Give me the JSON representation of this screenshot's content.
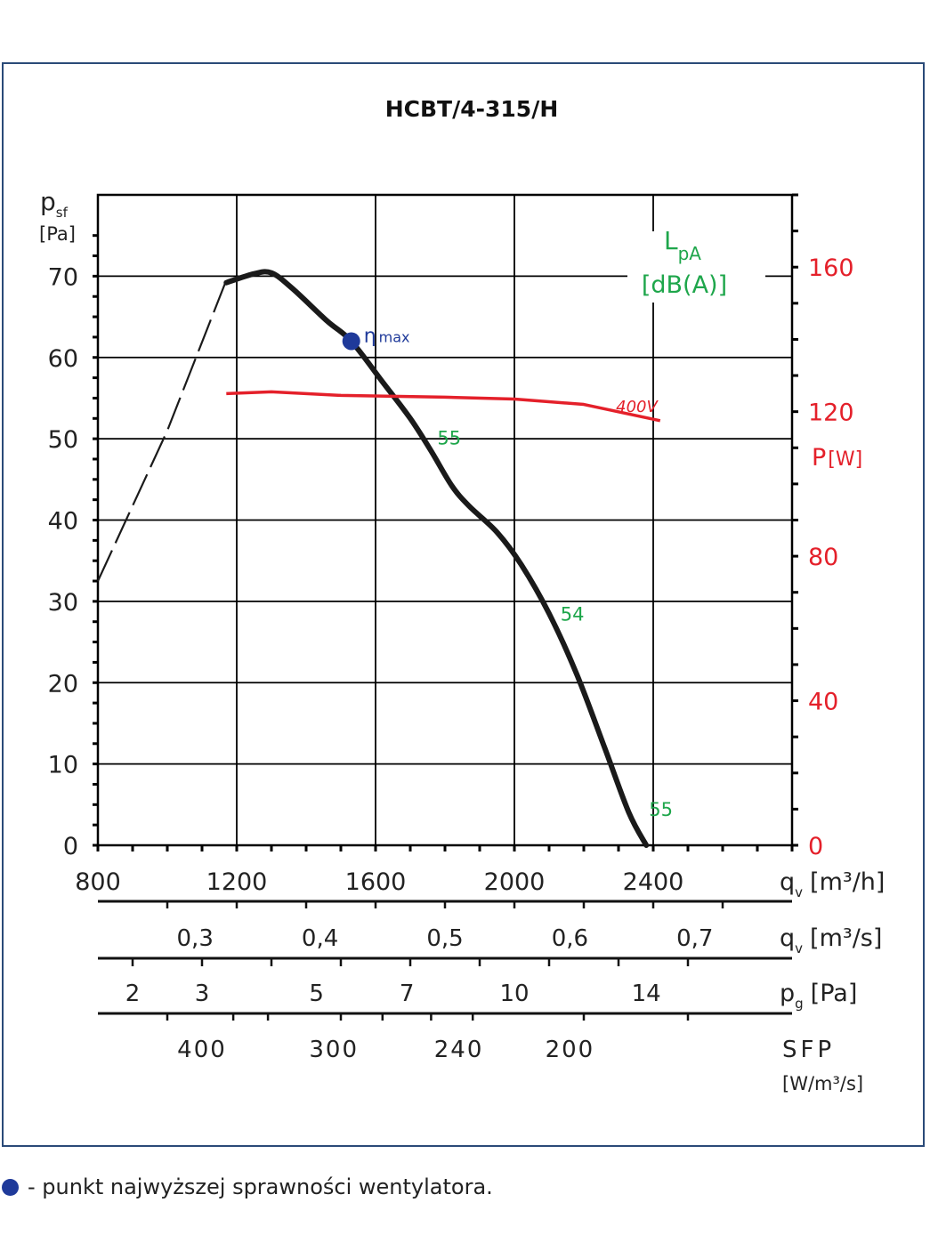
{
  "chart_data": {
    "type": "line",
    "title": "HCBT/4-315/H",
    "y_left": {
      "label_main": "p",
      "label_sub": "sf",
      "unit": "[Pa]",
      "ticks": [
        0,
        10,
        20,
        30,
        40,
        50,
        60,
        70
      ],
      "range": [
        0,
        80
      ]
    },
    "y_right": {
      "label_main": "P",
      "unit": "[W]",
      "ticks": [
        0,
        40,
        80,
        120,
        160
      ],
      "range": [
        0,
        180
      ]
    },
    "x_axis": {
      "label": "q",
      "label_sub": "v",
      "unit": "[m³/h]",
      "ticks": [
        800,
        1200,
        1600,
        2000,
        2400
      ],
      "range": [
        800,
        2800
      ]
    },
    "secondary_scales": [
      {
        "label": "q",
        "label_sub": "v",
        "unit": "[m³/s]",
        "ticks": [
          "0,3",
          "0,4",
          "0,5",
          "0,6",
          "0,7"
        ],
        "tick_values_m3h": [
          1080,
          1440,
          1800,
          2160,
          2520
        ]
      },
      {
        "label": "p",
        "label_sub": "g",
        "unit": "[Pa]",
        "ticks": [
          "2",
          "3",
          "5",
          "7",
          "10",
          "14"
        ],
        "tick_values_m3h": [
          900,
          1100,
          1430,
          1690,
          2000,
          2380
        ]
      },
      {
        "label": "SFP",
        "unit": "[W/m³/s]",
        "ticks": [
          "400",
          "300",
          "240",
          "200"
        ],
        "tick_values_m3h": [
          1100,
          1480,
          1840,
          2160
        ]
      }
    ],
    "lpa_label": {
      "main": "L",
      "sub": "pA",
      "unit": "[dB(A)]"
    },
    "series": [
      {
        "role": "pressure",
        "dashed_part": [
          [
            800,
            32.5
          ],
          [
            1000,
            51
          ],
          [
            1170,
            69.5
          ]
        ],
        "solid_part": [
          [
            1170,
            69.2
          ],
          [
            1250,
            70.3
          ],
          [
            1300,
            70.4
          ],
          [
            1360,
            68.5
          ],
          [
            1460,
            64.5
          ],
          [
            1530,
            62.0
          ],
          [
            1620,
            57
          ],
          [
            1700,
            52.5
          ],
          [
            1760,
            48.5
          ],
          [
            1820,
            44.2
          ],
          [
            1870,
            41.7
          ],
          [
            1950,
            38.5
          ],
          [
            2020,
            34.5
          ],
          [
            2100,
            28.5
          ],
          [
            2180,
            21
          ],
          [
            2260,
            12
          ],
          [
            2330,
            4
          ],
          [
            2380,
            0
          ]
        ]
      },
      {
        "role": "power",
        "name": "400V",
        "points": [
          [
            1170,
            125
          ],
          [
            1300,
            125.5
          ],
          [
            1500,
            124.5
          ],
          [
            1800,
            124
          ],
          [
            2000,
            123.5
          ],
          [
            2200,
            122
          ],
          [
            2420,
            117.5
          ]
        ]
      }
    ],
    "eta_max": {
      "label": "η",
      "label_sub": "max",
      "point": [
        1530,
        62.0
      ]
    },
    "noise_labels": [
      {
        "text": "55",
        "at": [
          1765,
          50.2
        ]
      },
      {
        "text": "54",
        "at": [
          2120,
          28.5
        ]
      },
      {
        "text": "55",
        "at": [
          2375,
          4.5
        ]
      }
    ],
    "colors": {
      "pressure": "#1a1a1a",
      "power": "#e4202a",
      "noise": "#1ea64b",
      "eta": "#1f3a9a",
      "grid": "#000000",
      "right_axis": "#e4202a"
    }
  },
  "footnote": "- punkt najwyższej sprawności wentylatora."
}
